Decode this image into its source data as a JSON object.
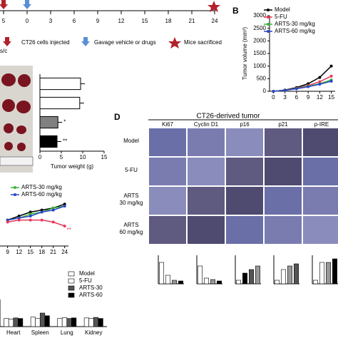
{
  "timeline": {
    "ticks": [
      "5",
      "0",
      "3",
      "6",
      "9",
      "12",
      "15",
      "18",
      "21",
      "24"
    ],
    "route": "s/c",
    "legend": [
      "CT26 cells injected",
      "Gavage vehicle or drugs",
      "Mice sacrificed"
    ]
  },
  "panel_d": {
    "label": "D",
    "title": "CT26-derived tumor",
    "columns": [
      "Ki67",
      "Cyclin D1",
      "p16",
      "p21",
      "p-IRE"
    ],
    "rows": [
      "Model",
      "5-FU",
      "ARTS\n30 mg/kg",
      "ARTS\n60 mg/kg"
    ]
  },
  "chart_data": [
    {
      "type": "line",
      "label": "B",
      "y_label": "Tumor volume (mm³)",
      "x": [
        0,
        3,
        6,
        9,
        12,
        15
      ],
      "xlim": [
        -1,
        16
      ],
      "xticks": [
        0,
        3,
        6,
        9,
        12,
        15
      ],
      "ylim": [
        0,
        3000
      ],
      "yticks": [
        0,
        500,
        1000,
        1500,
        2000,
        2500,
        3000
      ],
      "legend": "upper left",
      "series": [
        {
          "name": "Model",
          "color": "#000000",
          "values": [
            0,
            50,
            150,
            300,
            550,
            1000
          ]
        },
        {
          "name": "5-FU",
          "color": "#e8385a",
          "values": [
            0,
            40,
            120,
            230,
            380,
            600
          ]
        },
        {
          "name": "ARTS-30 mg/kg",
          "color": "#3cb43c",
          "values": [
            0,
            40,
            110,
            200,
            300,
            450
          ]
        },
        {
          "name": "ARTS-60 mg/kg",
          "color": "#2846c8",
          "values": [
            0,
            40,
            100,
            180,
            280,
            400
          ]
        }
      ]
    },
    {
      "type": "hbar",
      "x_label": "Tumor weight (g)",
      "categories": [
        null,
        null,
        null,
        null
      ],
      "values": [
        9.5,
        9.3,
        4.2,
        4.0
      ],
      "colors": [
        "#ffffff",
        "#ffffff",
        "#808080",
        "#000000"
      ],
      "xlim": [
        0,
        15
      ],
      "xticks": [
        0,
        5,
        10,
        15
      ],
      "annotations": [
        null,
        null,
        "*",
        "**"
      ]
    },
    {
      "type": "line",
      "x": [
        9,
        12,
        15,
        18,
        21,
        24
      ],
      "xlim": [
        7,
        25
      ],
      "xticks": [
        9,
        12,
        15,
        18,
        21,
        24
      ],
      "ylim": [
        0,
        25
      ],
      "legend": "upper left",
      "annotations": [
        "**"
      ],
      "series": [
        {
          "color": "#000000",
          "values": [
            13,
            15,
            17,
            18,
            19,
            21
          ]
        },
        {
          "name": "ARTS-30 mg/kg",
          "color": "#3cb43c",
          "values": [
            13,
            14,
            16,
            17,
            19,
            20
          ]
        },
        {
          "name": "ARTS-60 mg/kg",
          "color": "#2846c8",
          "values": [
            13,
            14,
            15,
            17,
            18,
            20
          ]
        },
        {
          "color": "#e8385a",
          "values": [
            12,
            13,
            13,
            13,
            12,
            10
          ]
        }
      ]
    },
    {
      "type": "bar",
      "categories": [
        "Heart",
        "Spleen",
        "Lung",
        "Kidney"
      ],
      "ylim": [
        0,
        1
      ],
      "legend": "upper right",
      "series": [
        {
          "name": "Model",
          "color": "#ffffff",
          "values": [
            0.3,
            0.35,
            0.3,
            0.32
          ]
        },
        {
          "name": "5-FU",
          "color": "#ffffff",
          "values": [
            0.28,
            0.3,
            0.33,
            0.3
          ]
        },
        {
          "name": "ARTS-30",
          "color": "#555555",
          "values": [
            0.32,
            0.5,
            0.3,
            0.34
          ]
        },
        {
          "name": "ARTS-60",
          "color": "#000000",
          "values": [
            0.3,
            0.4,
            0.32,
            0.3
          ]
        }
      ]
    },
    {
      "type": "bar",
      "values": [
        30,
        12,
        5,
        4
      ],
      "colors": [
        "#ffffff",
        "#ffffff",
        "#999999",
        "#000000"
      ],
      "ylim": [
        0,
        40
      ]
    },
    {
      "type": "bar",
      "values": [
        25,
        8,
        6,
        4
      ],
      "colors": [
        "#ffffff",
        "#ffffff",
        "#999999",
        "#000000"
      ],
      "ylim": [
        0,
        40
      ]
    },
    {
      "type": "bar",
      "values": [
        5,
        15,
        20,
        25
      ],
      "colors": [
        "#ffffff",
        "#000000",
        "#555555",
        "#999999"
      ],
      "ylim": [
        0,
        40
      ]
    },
    {
      "type": "bar",
      "values": [
        5,
        20,
        25,
        28
      ],
      "colors": [
        "#ffffff",
        "#ffffff",
        "#999999",
        "#555555"
      ],
      "ylim": [
        0,
        40
      ]
    },
    {
      "type": "bar",
      "values": [
        5,
        30,
        30,
        35
      ],
      "colors": [
        "#ffffff",
        "#ffffff",
        "#999999",
        "#000000"
      ],
      "ylim": [
        0,
        40
      ]
    }
  ]
}
